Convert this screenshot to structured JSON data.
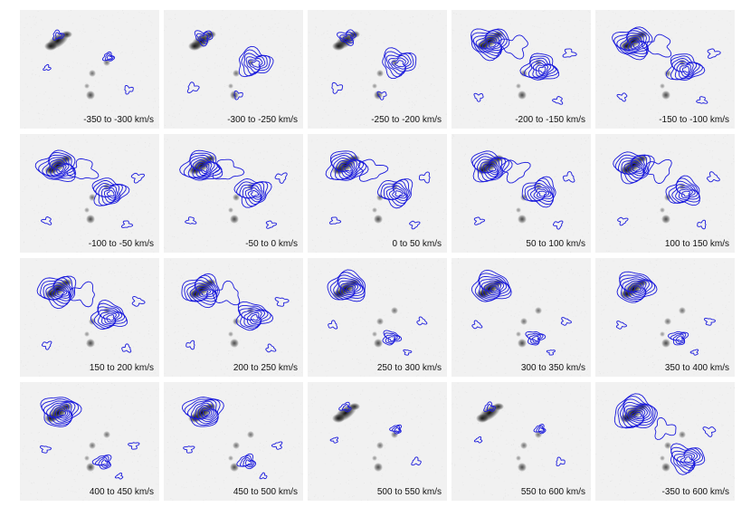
{
  "figure": {
    "contour_color": "#1a1adc",
    "panels": [
      {
        "label": "-350 to -300 km/s",
        "variant": "sparse"
      },
      {
        "label": "-300 to -250 km/s",
        "variant": "south"
      },
      {
        "label": "-250 to -200 km/s",
        "variant": "south"
      },
      {
        "label": "-200 to -150 km/s",
        "variant": "both"
      },
      {
        "label": "-150 to -100 km/s",
        "variant": "both"
      },
      {
        "label": "-100 to -50 km/s",
        "variant": "both"
      },
      {
        "label": "-50 to 0 km/s",
        "variant": "both"
      },
      {
        "label": "0 to 50 km/s",
        "variant": "both"
      },
      {
        "label": "50 to 100 km/s",
        "variant": "both"
      },
      {
        "label": "100 to 150 km/s",
        "variant": "both"
      },
      {
        "label": "150 to 200 km/s",
        "variant": "both"
      },
      {
        "label": "200 to 250 km/s",
        "variant": "both"
      },
      {
        "label": "250 to 300 km/s",
        "variant": "nucleus"
      },
      {
        "label": "300 to 350 km/s",
        "variant": "nucleus"
      },
      {
        "label": "350 to 400 km/s",
        "variant": "nucleus"
      },
      {
        "label": "400 to 450 km/s",
        "variant": "nucleus"
      },
      {
        "label": "450 to 500 km/s",
        "variant": "nucleus"
      },
      {
        "label": "500 to 550 km/s",
        "variant": "sparse"
      },
      {
        "label": "550 to 600 km/s",
        "variant": "sparse"
      },
      {
        "label": "-350 to 600 km/s",
        "variant": "total"
      }
    ]
  }
}
